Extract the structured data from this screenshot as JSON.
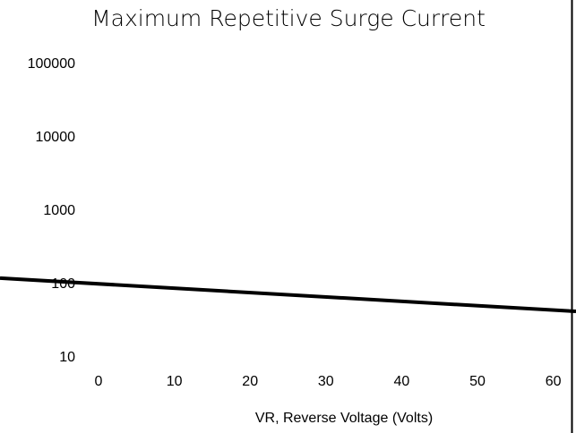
{
  "chart_data": {
    "type": "line",
    "title": "Maximum Repetitive Surge Current",
    "x_label": "VR, Reverse Voltage (Volts)",
    "x": [
      -13,
      63
    ],
    "series": [
      {
        "color": "#000000",
        "values": [
          122,
          43
        ]
      }
    ],
    "xlim": [
      -13,
      63
    ],
    "xticks": [
      0,
      10,
      20,
      30,
      40,
      50,
      60
    ],
    "ylim": [
      1,
      1000000
    ],
    "yticks": [
      10,
      100,
      1000,
      10000,
      100000
    ],
    "log_y": true,
    "grid": false
  }
}
